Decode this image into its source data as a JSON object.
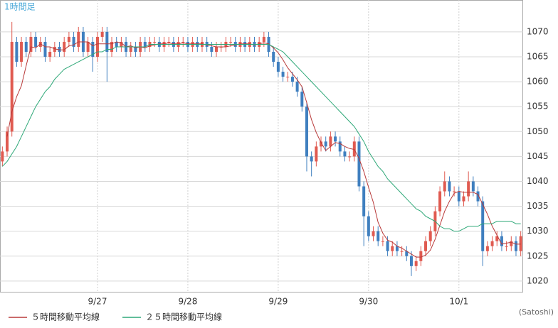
{
  "chart_data": {
    "type": "candlestick",
    "title": "1時間足",
    "credit": "(Satoshi)",
    "up_color": "#e05a50",
    "down_color": "#3f7fbf",
    "grid": true,
    "categories": [
      null,
      null,
      null,
      null,
      null,
      null,
      null,
      null,
      null,
      null,
      null,
      null,
      null,
      null,
      null,
      null,
      null,
      null,
      null,
      null,
      "9/27",
      null,
      null,
      null,
      null,
      null,
      null,
      null,
      null,
      null,
      null,
      null,
      null,
      null,
      null,
      null,
      null,
      null,
      null,
      "9/28",
      null,
      null,
      null,
      null,
      null,
      null,
      null,
      null,
      null,
      null,
      null,
      null,
      null,
      null,
      null,
      null,
      null,
      null,
      "9/29",
      null,
      null,
      null,
      null,
      null,
      null,
      null,
      null,
      null,
      null,
      null,
      null,
      null,
      null,
      null,
      null,
      null,
      null,
      "9/30",
      null,
      null,
      null,
      null,
      null,
      null,
      null,
      null,
      null,
      null,
      null,
      null,
      null,
      null,
      null,
      null,
      null,
      null,
      "10/1",
      null,
      null,
      null,
      null,
      null,
      null,
      null,
      null,
      null,
      null,
      null,
      null,
      null
    ],
    "open": [
      1044,
      1046,
      1050,
      1068,
      1064,
      1068,
      1066,
      1069,
      1067,
      1068,
      1065,
      1066,
      1067,
      1066,
      1068,
      1069,
      1067,
      1070,
      1066,
      1068,
      1065,
      1069,
      1070,
      1066,
      1068,
      1067,
      1068,
      1066,
      1067,
      1066,
      1068,
      1067,
      1068,
      1068,
      1067,
      1068,
      1068,
      1067,
      1068,
      1068,
      1067,
      1068,
      1067,
      1068,
      1067,
      1066,
      1067,
      1067,
      1068,
      1068,
      1067,
      1068,
      1067,
      1068,
      1067,
      1068,
      1069,
      1066,
      1064,
      1062,
      1061,
      1061,
      1060,
      1058,
      1055,
      1045,
      1044,
      1047,
      1048,
      1047,
      1049,
      1048,
      1046,
      1045,
      1045,
      1048,
      1039,
      1033,
      1029,
      1030,
      1028,
      1028,
      1026,
      1027,
      1026,
      1026,
      1025,
      1023,
      1024,
      1026,
      1028,
      1030,
      1034,
      1038,
      1040,
      1038,
      1038,
      1036,
      1037,
      1040,
      1038,
      1036,
      1026,
      1027,
      1028,
      1029,
      1027,
      1027,
      1028,
      1026
    ],
    "high": [
      1047,
      1051,
      1072,
      1069,
      1069,
      1069,
      1070,
      1070,
      1069,
      1069,
      1067,
      1068,
      1068,
      1069,
      1070,
      1070,
      1071,
      1071,
      1069,
      1069,
      1070,
      1071,
      1071,
      1069,
      1069,
      1069,
      1069,
      1068,
      1068,
      1069,
      1069,
      1069,
      1069,
      1069,
      1069,
      1069,
      1069,
      1069,
      1069,
      1069,
      1069,
      1069,
      1069,
      1069,
      1068,
      1068,
      1068,
      1069,
      1069,
      1069,
      1069,
      1069,
      1069,
      1069,
      1069,
      1070,
      1070,
      1067,
      1065,
      1063,
      1062,
      1062,
      1061,
      1059,
      1056,
      1046,
      1048,
      1049,
      1049,
      1050,
      1050,
      1049,
      1047,
      1046,
      1049,
      1049,
      1040,
      1034,
      1031,
      1031,
      1029,
      1029,
      1028,
      1028,
      1027,
      1027,
      1026,
      1025,
      1027,
      1029,
      1031,
      1035,
      1039,
      1042,
      1041,
      1039,
      1039,
      1038,
      1042,
      1041,
      1039,
      1037,
      1028,
      1029,
      1030,
      1030,
      1028,
      1029,
      1029,
      1030
    ],
    "low": [
      1043,
      1045,
      1049,
      1063,
      1063,
      1065,
      1065,
      1066,
      1066,
      1064,
      1064,
      1065,
      1065,
      1065,
      1067,
      1066,
      1066,
      1065,
      1065,
      1062,
      1064,
      1068,
      1060,
      1065,
      1066,
      1066,
      1065,
      1065,
      1065,
      1065,
      1066,
      1066,
      1067,
      1066,
      1066,
      1067,
      1066,
      1066,
      1067,
      1066,
      1066,
      1066,
      1066,
      1066,
      1065,
      1065,
      1066,
      1066,
      1067,
      1066,
      1066,
      1066,
      1066,
      1066,
      1066,
      1067,
      1065,
      1063,
      1061,
      1060,
      1060,
      1059,
      1057,
      1054,
      1042,
      1041,
      1043,
      1046,
      1046,
      1046,
      1047,
      1045,
      1044,
      1044,
      1044,
      1038,
      1027,
      1028,
      1028,
      1027,
      1027,
      1025,
      1025,
      1025,
      1025,
      1024,
      1021,
      1022,
      1023,
      1025,
      1027,
      1029,
      1033,
      1037,
      1037,
      1037,
      1035,
      1035,
      1036,
      1037,
      1035,
      1023,
      1025,
      1026,
      1027,
      1026,
      1026,
      1026,
      1025,
      1025
    ],
    "close": [
      1046,
      1050,
      1068,
      1064,
      1068,
      1066,
      1069,
      1067,
      1068,
      1065,
      1066,
      1067,
      1066,
      1068,
      1069,
      1067,
      1070,
      1066,
      1068,
      1065,
      1069,
      1070,
      1066,
      1068,
      1067,
      1068,
      1066,
      1067,
      1066,
      1068,
      1067,
      1068,
      1068,
      1067,
      1068,
      1068,
      1067,
      1068,
      1068,
      1067,
      1068,
      1067,
      1068,
      1067,
      1066,
      1067,
      1067,
      1068,
      1068,
      1067,
      1068,
      1067,
      1068,
      1067,
      1068,
      1069,
      1066,
      1064,
      1062,
      1061,
      1061,
      1060,
      1058,
      1055,
      1045,
      1044,
      1047,
      1048,
      1047,
      1049,
      1048,
      1046,
      1045,
      1045,
      1048,
      1039,
      1033,
      1029,
      1030,
      1028,
      1028,
      1026,
      1027,
      1026,
      1026,
      1025,
      1023,
      1024,
      1026,
      1028,
      1030,
      1034,
      1038,
      1040,
      1038,
      1038,
      1036,
      1037,
      1040,
      1038,
      1036,
      1026,
      1027,
      1028,
      1029,
      1027,
      1027,
      1028,
      1026,
      1029
    ],
    "series": [
      {
        "name": "５時間移動平均線",
        "color": "#b83a3a",
        "values": [
          null,
          1049,
          1054,
          1057,
          1059.2,
          1063.2,
          1067,
          1066.8,
          1067.6,
          1067,
          1067,
          1066.6,
          1066.4,
          1066.4,
          1067.2,
          1067.4,
          1068,
          1068,
          1068,
          1067.2,
          1067.6,
          1067.6,
          1067.6,
          1067.6,
          1068,
          1067.8,
          1067,
          1067.2,
          1066.8,
          1067,
          1066.8,
          1067.2,
          1067.4,
          1067.6,
          1067.6,
          1067.8,
          1067.6,
          1067.6,
          1067.8,
          1067.6,
          1067.6,
          1067.6,
          1067.6,
          1067.4,
          1067.2,
          1067,
          1067,
          1067,
          1067.2,
          1067.4,
          1067.6,
          1067.6,
          1067.6,
          1067.4,
          1067.6,
          1067.8,
          1067.6,
          1066.8,
          1065.8,
          1064.4,
          1062.8,
          1061.6,
          1060.4,
          1059,
          1055.8,
          1052.4,
          1049.8,
          1047.8,
          1046.2,
          1047,
          1047.8,
          1047.6,
          1047,
          1046.6,
          1046.4,
          1044.6,
          1042,
          1038.8,
          1035.8,
          1031.8,
          1029.6,
          1028.2,
          1027.8,
          1027,
          1026.6,
          1026,
          1025.4,
          1024.8,
          1024.8,
          1025.2,
          1026.2,
          1028.4,
          1031.2,
          1034,
          1036,
          1037.6,
          1038,
          1037.8,
          1037.8,
          1037.8,
          1037.4,
          1035.4,
          1033.4,
          1031,
          1029.2,
          1027.4,
          1027.6,
          1027.8,
          1027.4,
          1027.4
        ]
      },
      {
        "name": "２５時間移動平均線",
        "color": "#2ea878",
        "values": [
          1043,
          1044,
          1045.5,
          1047,
          1049,
          1051,
          1053,
          1055,
          1056.5,
          1058,
          1059,
          1060.5,
          1061.5,
          1062.5,
          1063,
          1063.5,
          1064,
          1064.5,
          1065,
          1065.5,
          1066,
          1066,
          1066.5,
          1066.5,
          1067,
          1067,
          1067,
          1067,
          1067,
          1067,
          1067,
          1067.5,
          1067.5,
          1067.5,
          1067.5,
          1067.5,
          1067.5,
          1067.5,
          1067.5,
          1067.5,
          1067.5,
          1067.5,
          1067.5,
          1067.5,
          1067.5,
          1067.5,
          1067.5,
          1067.5,
          1067.5,
          1067.5,
          1067.5,
          1067.5,
          1067.5,
          1067.5,
          1067.5,
          1067.5,
          1067.5,
          1067,
          1066.5,
          1066,
          1065,
          1064,
          1063,
          1062,
          1061,
          1060,
          1059,
          1058,
          1057,
          1056,
          1055,
          1054,
          1053,
          1052,
          1051,
          1049.5,
          1048,
          1046,
          1044.5,
          1043,
          1042,
          1040.5,
          1039.5,
          1038.5,
          1037.5,
          1036.5,
          1035.5,
          1034.5,
          1034,
          1033,
          1032.5,
          1032,
          1031,
          1030.5,
          1030.5,
          1030,
          1030,
          1030.5,
          1031,
          1031,
          1031,
          1031.5,
          1031.5,
          1031.5,
          1032,
          1032,
          1032,
          1032,
          1031.5,
          1031.5
        ]
      }
    ],
    "ylim": [
      1017.7,
      1076.4
    ],
    "yticks": [
      1020,
      1025,
      1030,
      1035,
      1040,
      1045,
      1050,
      1055,
      1060,
      1065,
      1070
    ]
  }
}
